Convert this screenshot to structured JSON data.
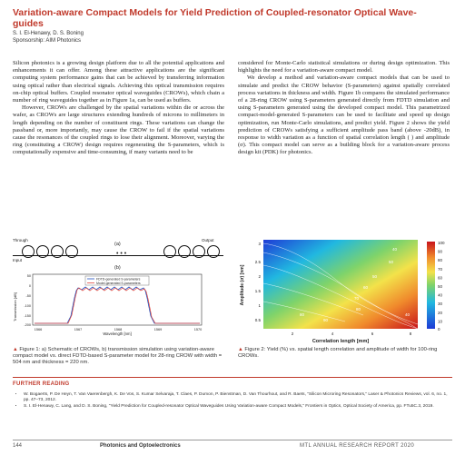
{
  "title": "Variation-aware Compact Models for Yield Prediction of Coupled-resonator Optical Wave-guides",
  "authors": "S. I. El-Henawy, D. S. Boning",
  "sponsorship": "Sponsorship: AIM Photonics",
  "left_column": [
    "Silicon photonics is a growing design platform due to all the potential applications and enhancements it can offer. Among these attractive applications are the significant computing system performance gains that can be achieved by transferring information using optical rather than electrical signals. Achieving this optical transmission requires on-chip optical buffers. Coupled resonator optical waveguides (CROWs), which chain a number of ring waveguides together as in Figure 1a, can be used as buffers.",
    "However, CROWs are challenged by the spatial variations within die or across the wafer, as CROWs are large structures extending hundreds of microns to millimeters in length depending on the number of constituent rings. These variations can change the passband or, more importantly, may cause the CROW to fail if the spatial variations cause the resonances of the coupled rings to lose their alignment. Moreover, varying the ring (constituting a CROW) design requires regenerating the S-parameters, which is computationally expensive and time-consuming, if many variants need to be"
  ],
  "right_column": [
    "considered for Monte-Carlo statistical simulations or during design optimization. This highlights the need for a variation-aware compact model.",
    "We develop a method and variation-aware compact models that can be used to simulate and predict the CROW behavior (S-parameters) against spatially correlated process variations in thickness and width. Figure 1b compares the simulated performance of a 28-ring CROW using S-parameters generated directly from FDTD simulation and using S-parameters generated using the developed compact model. This parametrized compact-model-generated S-parameters can be used to facilitate and speed up design optimization, run Monte-Carlo simulations, and predict yield. Figure 2 shows the yield prediction of CROWs satisfying a sufficient amplitude pass band (above -20dB), in response to width variation as a function of spatial correlation length ( ) and amplitude (σ). This compact model can serve as a building block for a variation-aware process design kit (PDK) for photonics."
  ],
  "figure1": {
    "label_a": "(a)",
    "label_b": "(b)",
    "through": "Through",
    "output": "Output",
    "input": "Input",
    "dots": "• • •",
    "legend": [
      "FDTD-generated S-parameters",
      "Model-generated S-parameters"
    ],
    "ylabel": "Transmission [dB]",
    "xlabel": "Wavelength [nm]",
    "yticks": [
      "50",
      "0",
      "-50",
      "-100",
      "-150",
      "-200"
    ],
    "xticks": [
      "1566",
      "1567",
      "1568",
      "1569",
      "1570"
    ],
    "caption": "Figure 1: a) Schematic of CROWs, b) transmission simulation using variation-aware compact model vs. direct FDTD-based S-parameter model for 28-ring CROW with width = 504 nm and thickness = 220 nm."
  },
  "figure2": {
    "ylabel": "Amplitude (σ) [nm]",
    "xlabel": "Correlation length [mm]",
    "yticks": [
      "0.5",
      "1",
      "1.5",
      "2",
      "2.5",
      "3"
    ],
    "xticks": [
      "2",
      "4",
      "6",
      "8"
    ],
    "colorbar_ticks": [
      "100",
      "90",
      "80",
      "70",
      "60",
      "50",
      "40",
      "30",
      "20",
      "10",
      "0"
    ],
    "contour_labels": [
      "40",
      "50",
      "50",
      "60",
      "70",
      "80",
      "90",
      "80",
      "40"
    ],
    "caption": "Figure 2: Yield (%) vs. spatial length correlation and amplitude of width for 100-ring CROWs."
  },
  "further_reading": {
    "heading": "FURTHER READING",
    "refs": [
      "W. Bogaerts, P. De Heyn, T. Van Vaerenbergh, K. De Vos, S. Kumar Selvaraja, T. Claes, P. Dumon, P. Bienstman, D. Van Thourhout, and R. Baets, \"Silicon Microring Resonators,\" Laser & Photonics Reviews, vol. 6, no. 1, pp. 47–73, 2012.",
      "S. I. El-Henawy, C. Lang, and D. S. Boning, \"Yield Prediction for Coupled-resonator Optical Waveguides Using Variation-aware Compact Models,\" Frontiers in Optics, Optical Society of America, pp. FTu5C.3, 2019."
    ]
  },
  "footer": {
    "page": "144",
    "section": "Photonics and Optoelectronics",
    "report": "MTL ANNUAL RESEARCH REPORT 2020"
  },
  "colors": {
    "accent": "#c0392b"
  }
}
